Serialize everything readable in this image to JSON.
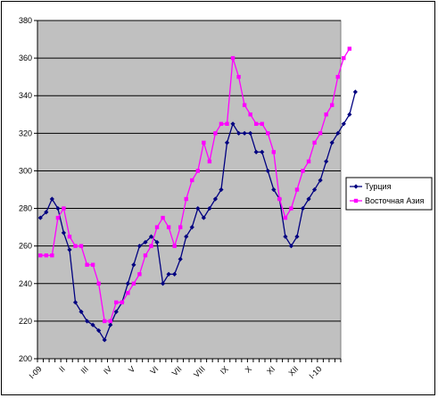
{
  "chart_data": {
    "type": "line",
    "title": "",
    "xlabel": "",
    "ylabel": "",
    "ylim": [
      200,
      380
    ],
    "yticks": [
      200,
      220,
      240,
      260,
      280,
      300,
      320,
      340,
      360,
      380
    ],
    "x_tick_labels": [
      "I-09",
      "II",
      "III",
      "IV",
      "V",
      "VI",
      "VII",
      "VIII",
      "IX",
      "X",
      "XI",
      "XII",
      "I-10"
    ],
    "points_per_month": 4,
    "grid": "horizontal",
    "plot_background": "#c0c0c0",
    "legend": {
      "placement": "right"
    },
    "series": [
      {
        "name": "Турция",
        "color": "#000080",
        "marker": "diamond",
        "values": [
          275,
          278,
          285,
          280,
          267,
          258,
          230,
          225,
          220,
          218,
          215,
          210,
          218,
          225,
          230,
          240,
          250,
          260,
          262,
          265,
          262,
          240,
          245,
          245,
          253,
          265,
          270,
          280,
          275,
          280,
          285,
          290,
          315,
          325,
          320,
          320,
          320,
          310,
          310,
          300,
          290,
          285,
          265,
          260,
          265,
          280,
          285,
          290,
          295,
          305,
          315,
          320,
          325,
          330,
          342
        ]
      },
      {
        "name": "Восточная Азия",
        "color": "#ff00ff",
        "marker": "square",
        "values": [
          255,
          255,
          255,
          275,
          280,
          265,
          260,
          260,
          250,
          250,
          240,
          220,
          220,
          230,
          230,
          235,
          240,
          245,
          255,
          260,
          270,
          275,
          270,
          260,
          270,
          285,
          295,
          300,
          315,
          305,
          320,
          325,
          325,
          360,
          350,
          335,
          330,
          325,
          325,
          320,
          310,
          285,
          275,
          280,
          290,
          300,
          305,
          315,
          320,
          330,
          335,
          350,
          360,
          365
        ]
      }
    ]
  }
}
